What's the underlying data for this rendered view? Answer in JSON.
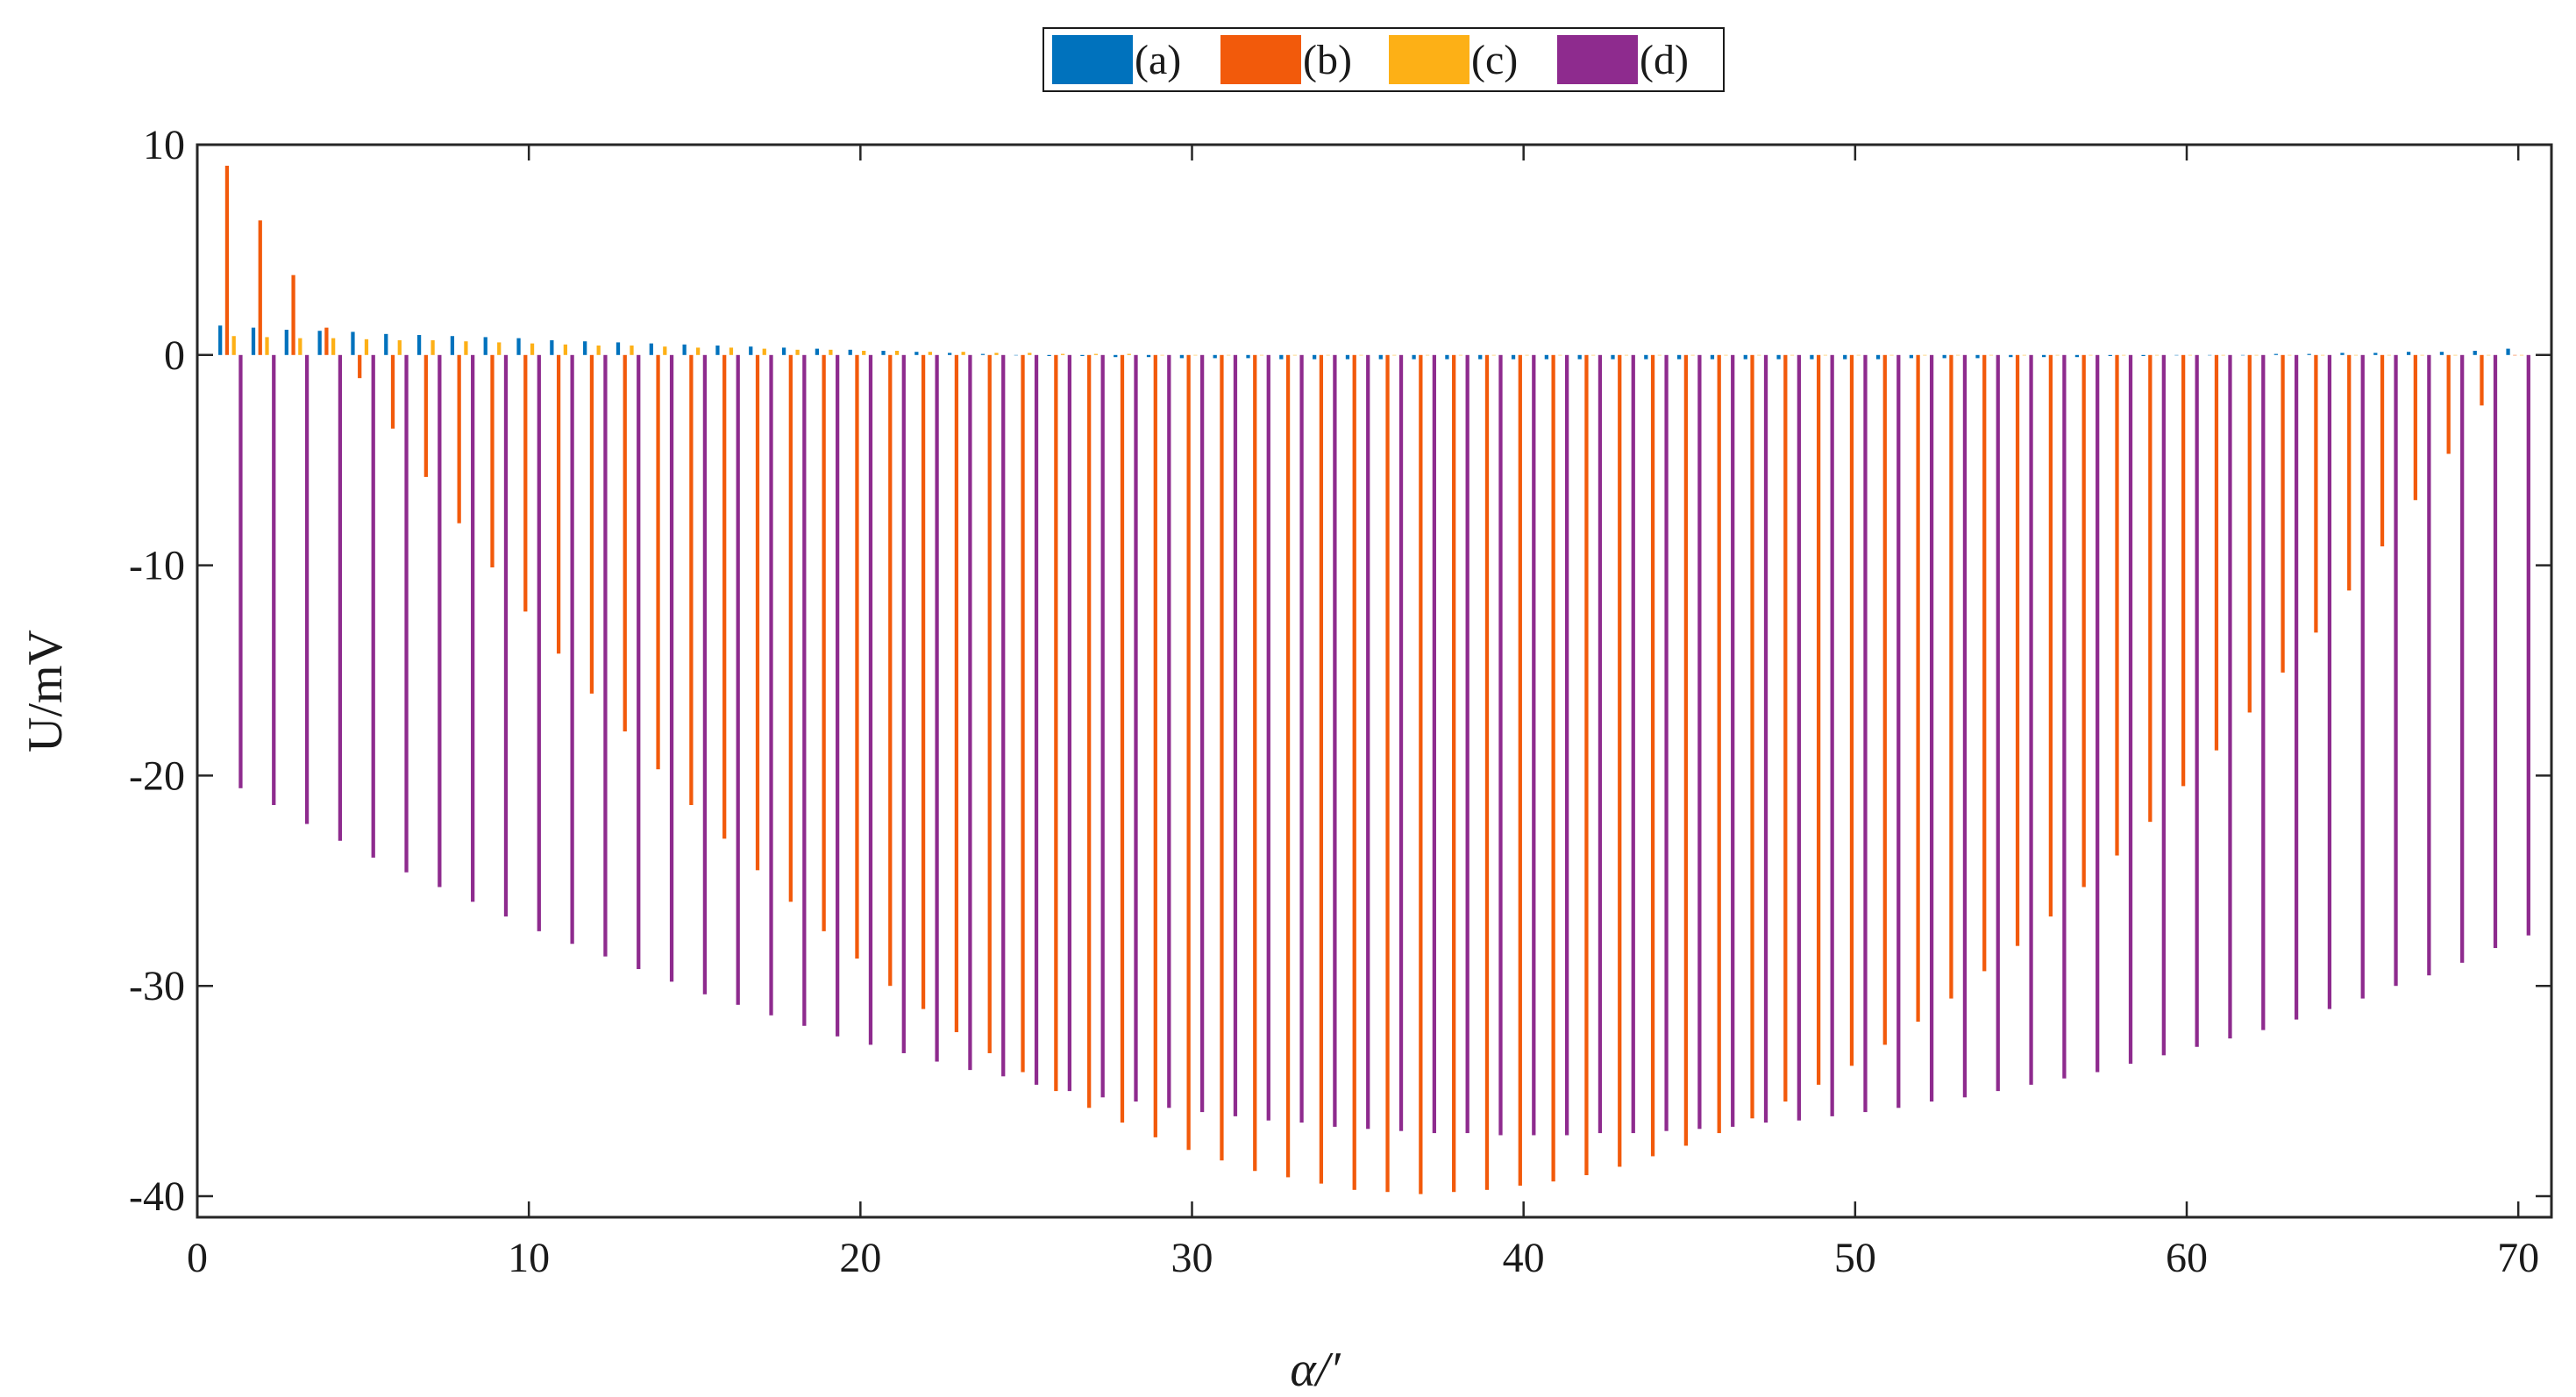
{
  "chart_data": {
    "type": "bar",
    "x": [
      1,
      2,
      3,
      4,
      5,
      6,
      7,
      8,
      9,
      10,
      11,
      12,
      13,
      14,
      15,
      16,
      17,
      18,
      19,
      20,
      21,
      22,
      23,
      24,
      25,
      26,
      27,
      28,
      29,
      30,
      31,
      32,
      33,
      34,
      35,
      36,
      37,
      38,
      39,
      40,
      41,
      42,
      43,
      44,
      45,
      46,
      47,
      48,
      49,
      50,
      51,
      52,
      53,
      54,
      55,
      56,
      57,
      58,
      59,
      60,
      61,
      62,
      63,
      64,
      65,
      66,
      67,
      68,
      69,
      70
    ],
    "series": [
      {
        "name": "(a)",
        "color": "#0072BD",
        "values": [
          1.4,
          1.3,
          1.2,
          1.15,
          1.1,
          1.0,
          0.95,
          0.9,
          0.85,
          0.8,
          0.7,
          0.65,
          0.6,
          0.55,
          0.5,
          0.45,
          0.4,
          0.35,
          0.3,
          0.25,
          0.2,
          0.15,
          0.1,
          0.05,
          0.0,
          -0.05,
          -0.05,
          -0.1,
          -0.1,
          -0.15,
          -0.15,
          -0.15,
          -0.2,
          -0.2,
          -0.2,
          -0.2,
          -0.2,
          -0.2,
          -0.2,
          -0.2,
          -0.2,
          -0.2,
          -0.2,
          -0.2,
          -0.2,
          -0.2,
          -0.2,
          -0.2,
          -0.2,
          -0.2,
          -0.2,
          -0.15,
          -0.15,
          -0.15,
          -0.1,
          -0.1,
          -0.1,
          -0.05,
          -0.05,
          0.0,
          0.0,
          0.0,
          0.05,
          0.05,
          0.1,
          0.1,
          0.15,
          0.15,
          0.2,
          0.3
        ]
      },
      {
        "name": "(b)",
        "color": "#F25A0B",
        "values": [
          9.0,
          6.4,
          3.8,
          1.3,
          -1.1,
          -3.5,
          -5.8,
          -8.0,
          -10.1,
          -12.2,
          -14.2,
          -16.1,
          -17.9,
          -19.7,
          -21.4,
          -23.0,
          -24.5,
          -26.0,
          -27.4,
          -28.7,
          -30.0,
          -31.1,
          -32.2,
          -33.2,
          -34.1,
          -35.0,
          -35.8,
          -36.5,
          -37.2,
          -37.8,
          -38.3,
          -38.8,
          -39.1,
          -39.4,
          -39.7,
          -39.8,
          -39.9,
          -39.8,
          -39.7,
          -39.5,
          -39.3,
          -39.0,
          -38.6,
          -38.1,
          -37.6,
          -37.0,
          -36.3,
          -35.5,
          -34.7,
          -33.8,
          -32.8,
          -31.7,
          -30.6,
          -29.3,
          -28.1,
          -26.7,
          -25.3,
          -23.8,
          -22.2,
          -20.5,
          -18.8,
          -17.0,
          -15.1,
          -13.2,
          -11.2,
          -9.1,
          -6.9,
          -4.7,
          -2.4,
          0.0
        ]
      },
      {
        "name": "(c)",
        "color": "#FDB016",
        "values": [
          0.9,
          0.85,
          0.8,
          0.8,
          0.75,
          0.7,
          0.7,
          0.65,
          0.6,
          0.55,
          0.5,
          0.45,
          0.45,
          0.4,
          0.35,
          0.35,
          0.3,
          0.25,
          0.25,
          0.2,
          0.2,
          0.15,
          0.15,
          0.1,
          0.1,
          0.05,
          0.05,
          0.05,
          0.0,
          0.0,
          0.0,
          0.0,
          0.0,
          0.0,
          0.0,
          0.0,
          0.0,
          0.0,
          0.0,
          0.0,
          0.0,
          0.0,
          0.0,
          0.0,
          0.0,
          0.0,
          0.0,
          0.0,
          0.0,
          0.0,
          0.0,
          0.0,
          0.0,
          0.0,
          0.0,
          0.0,
          0.0,
          0.0,
          0.0,
          0.0,
          0.0,
          0.0,
          0.0,
          0.0,
          0.0,
          0.0,
          0.0,
          0.0,
          0.0,
          0.0
        ]
      },
      {
        "name": "(d)",
        "color": "#8E2B8E",
        "values": [
          -20.6,
          -21.4,
          -22.3,
          -23.1,
          -23.9,
          -24.6,
          -25.3,
          -26.0,
          -26.7,
          -27.4,
          -28.0,
          -28.6,
          -29.2,
          -29.8,
          -30.4,
          -30.9,
          -31.4,
          -31.9,
          -32.4,
          -32.8,
          -33.2,
          -33.6,
          -34.0,
          -34.3,
          -34.7,
          -35.0,
          -35.3,
          -35.5,
          -35.8,
          -36.0,
          -36.2,
          -36.4,
          -36.5,
          -36.7,
          -36.8,
          -36.9,
          -37.0,
          -37.0,
          -37.1,
          -37.1,
          -37.1,
          -37.0,
          -37.0,
          -36.9,
          -36.8,
          -36.7,
          -36.5,
          -36.4,
          -36.2,
          -36.0,
          -35.8,
          -35.5,
          -35.3,
          -35.0,
          -34.7,
          -34.4,
          -34.1,
          -33.7,
          -33.3,
          -32.9,
          -32.5,
          -32.1,
          -31.6,
          -31.1,
          -30.6,
          -30.0,
          -29.5,
          -28.9,
          -28.2,
          -27.6
        ]
      }
    ],
    "xlabel": "α/′",
    "ylabel": "U/mV",
    "xlim": [
      0,
      71
    ],
    "ylim": [
      -41,
      10
    ],
    "xticks": [
      "0",
      "10",
      "20",
      "30",
      "40",
      "50",
      "60",
      "70"
    ],
    "yticks": [
      "10",
      "0",
      "-10",
      "-20",
      "-30",
      "-40"
    ],
    "grid": false,
    "legend_position": "top-center-outside",
    "legend_orientation": "horizontal"
  }
}
